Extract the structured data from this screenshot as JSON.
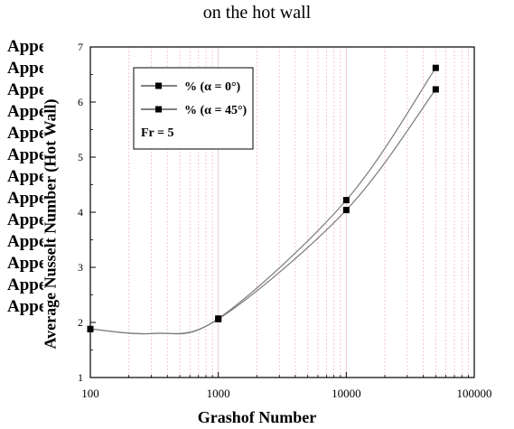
{
  "caption": "on the hot wall",
  "left_text": {
    "first": "Appendix F",
    "lines": [
      "Appendix",
      "Appendix",
      "Appendix",
      "Appendix",
      "Appendix",
      "Appendix",
      "Appendix",
      "Appendix",
      "Appendix",
      "Appendix",
      "Appendix",
      "Appendix",
      "Appendix"
    ]
  },
  "chart_data": {
    "type": "line",
    "title": "",
    "xlabel": "Grashof Number",
    "ylabel": "Average Nusselt Number (Hot Wall)",
    "xscale": "log",
    "xlim": [
      100,
      100000
    ],
    "ylim": [
      1,
      7
    ],
    "x_ticks": [
      100,
      1000,
      10000,
      100000
    ],
    "x_tick_labels": [
      "100",
      "1000",
      "10000",
      "100000"
    ],
    "y_ticks": [
      1,
      2,
      3,
      4,
      5,
      6,
      7
    ],
    "y_tick_labels": [
      "1",
      "2",
      "3",
      "4",
      "5",
      "6",
      "7"
    ],
    "grid": "vertical minor log gridlines (light pink)",
    "legend_position": "top-left inside plot",
    "legend_note": "Fr = 5",
    "series": [
      {
        "name": "% (α = 0°)",
        "x": [
          100,
          1000,
          10000,
          50000
        ],
        "y": [
          1.88,
          2.07,
          4.22,
          6.62
        ]
      },
      {
        "name": "% (α = 45°)",
        "x": [
          100,
          1000,
          10000,
          50000
        ],
        "y": [
          1.88,
          2.06,
          4.04,
          6.23
        ]
      }
    ],
    "colors": {
      "line": "#7a7a7a",
      "marker": "#000000",
      "grid": "#f0c8d8",
      "axis": "#000000"
    }
  }
}
